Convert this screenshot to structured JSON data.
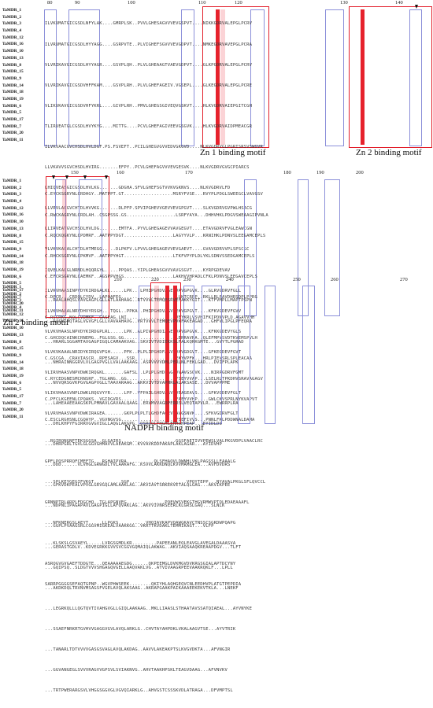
{
  "blocks": [
    {
      "ruler": [
        "80",
        "90",
        "100",
        "110",
        "120",
        "130",
        "140"
      ],
      "sequence_names": [
        "TaMDR_1",
        "TaMDR_2",
        "TaMDR_3",
        "TaMDR_4",
        "TaMDR_12",
        "TaMDR_16",
        "TaMDR_10",
        "TaMDR_13",
        "TaMDR_8",
        "TaMDR_15",
        "TaMDR_9",
        "TaMDR_14",
        "TaMDR_18",
        "TaMDR_19",
        "TaMDR_6",
        "TaMDR_5",
        "TaMDR_17",
        "TaMDR_7",
        "TaMDR_20",
        "TaMDR_11"
      ],
      "sequences": [
        "ILVKVMATGICGSDLNFYLAK....GMRPLSK..PVVLGHESAGVVVEVGSPVT....NIKKGDRVALEPGLPCRV",
        "ILVRVMATGICGSDLHYYAGG....GSRPVTE..PLVIGHEFSGVVVEVGDPVT....NMKEGDRVAVEPGLPCRA",
        "VLVRIKAVGICGSDLHYYAGR....GSVPLQH..PLVLGHEAAGTVAEVGDPVT....GLKPGDRVALEPGLPCRV",
        "VLVRIKAVGICGSDVHFFKAM....GSVPLRH..PLVLGHEFAGEIV.VGSEPL....GLKEGDRVALEPGLPCRE",
        "VLIKVKAVGICGSDVHFYKRL....GIVPLRH..PMVLGHEGSGIVEQVGSKVT....HLKVGDRVAIEPGITCGH",
        "TLIRVEATGLCGSDLHVYKYG....MITTG....PCVLGHEFAGIVEEVGSGVK....HLKVGDRVAIDPMEACGR",
        "ILVKVAACGVCHSDLHVLDGF.PS.FSVEFT..PCILGHEGVGVVEDVGKGVD....NLKVGDRVGLPGRISRSVSWGVR",
        "LLVKAVVSGVCHSDLHVIRG.......EFPY..PCVLGHEFAGVVVEVGESVK....NLKVGDRVGVGCPIARCS",
        "LHIQVEASGICGSDLHVLKG.......GDGHA.SFVLGHEFSGTVVKVGKNVS....NLKVGDRVLFD",
        "LLVRVLACGVCHTDLHVVKG.......DLPFP.SPVIPGHEVVGEVVEVGPGVT....SLKVGDRVGVPWLHSACG",
        "LLIRVEATGVCHSDLHVLDG.......EMTFA..PYVLGHEGAGEVVAVGEGVT....ETAVGDRVFVGLEAWCGN",
        "VLVKVKACALCHTDLHTMEGG.....DLPKFV.LPVVLGHEGAGEVVEVGAEVT....GVAVGDRVVPLSPSCGC",
        "IQVELKACGLNRMDLHQQRGYL.....PPQAS..YIPLGHEASGVVVAVGSGVT....KYRPGDEVAV",
        "ILVKVHAASINPVDYKIRDGALKL.....LPK...LPHIPGHDVAGEVVAVGPGVK....GLRVGDRVFGLL",
        "ILVKVHAAALNRVDHVYRSGH...TQGL..PPKA..PHIPGHDVAGVVEKVGPGVT....KFKVGDEVFGVV",
        "VLVKVHAASLNPVDYKIRDGPLRL.....LPK..ALPIVPGHDIAGEVVAVGPGVK....KFKKGDEVYGLS",
        "VLVKVKAAALNRIDYKIRQGVFGH.....PFK..PLPLIPGHDFAGVVVAVGDGVT....GFKEGDEVFGVT",
        "VLIRVHAASVNPVDWKIRQGKL.......GAFSL..LPLPLGHDFAGEVVAVGSGVK....NIRPGDRVFGMT",
        "VLIKVHAASVNPLDWKLRQGVYYR.....LPP..VFPAILGHDVAGVVVEAGEAVS....GFKVGDEVFGLT",
        "VLVRVHAASVNPVDWKIRAGEA.......GKPLPLPLTLGHDFAGEVVAVGSNVK....SFKVGDRVFGLT"
      ]
    },
    {
      "ruler": [
        "150",
        "160",
        "170",
        "180",
        "190",
        "200"
      ],
      "sequence_names": [
        "TaMDR_1",
        "TaMDR_2",
        "TaMDR_3",
        "TaMDR_4",
        "TaMDR_12",
        "TaMDR_16",
        "TaMDR_10",
        "TaMDR_13",
        "TaMDR_8",
        "TaMDR_15",
        "TaMDR_9",
        "TaMDR_14",
        "TaMDR_18",
        "TaMDR_19",
        "TaMDR_6",
        "TaMDR_5",
        "TaMDR_17",
        "TaMDR_7",
        "TaMDR_20",
        "TaMDR_11"
      ],
      "sequences": [
        "C.EYCKSGRYNLCRDHGY..MATPPT.GT..................MSRYFVSE...RVYPLPDGLSWEEGCLVAVGSV",
        "C.RWCKAGRYNLCRDLAH..CSGPSSG.GS..................LSRFYAYA...DHHVHKLPDGVSWEAAGIPVNLA",
        "C.RQCKQGKYNLCPDMRF..AATPPYDGT..................LAGYYVLP...KRNIHKLPDNVSLEEGAMCEPLS",
        "C.RHCKSGRYNLCPKMVF..AATPPYHGT..................LTKFVPYPLDLYKLSDNVSSEDGAMCEPLS",
        "C.EFCRSGRYNLCAEMKF..AGSPPVHGS..................LAKHVVHPADLCFKLPDNVSLEEGAVCEPLS",
        "C.DPCR...CRDQLCYDV..LAPQAFEG....................LLKTCRPP..RKLLRLPAVDHRSDPLPPRG",
        "C.RSCRKG.NQLCVDMKF..GASEAG.LNI..................VEYKRLVSVHIFKIPDNVPLD.AGAVVHH",
        "C.GHCDQCAINKCRNEMG..FGLGSG.GG...................LERRAVRA..QLEFMPVSVDTKVEMSPVLH",
        "C.GSCGA..CRAVIASCR..RPESAGV...SSR..............QEKYVPFW...HRLPIEVSRLSPLEACAA",
        "C.RYCEDGNESMCRNSRF..TGLANG..GG..................YSEYVVAP...LSELRLTPKDHVSRAVAGAGV",
        "C.PFCLKGEENLCPQAKS..VGIDGVRS....................YAEYVVHP....GWLCKVSPRLNYKVAPVT",
        "C.ESCLRGHSNLCGQAYP..VGVNGVSG....................YSEFIVVS...PNNLFKLPDDWNALDAMA",
        "..RGIRQNGNFTEKSGGSA..GLGAIRS....................GGSFAETIVVPEWSLVALPKGVDPLVAACLRC",
        "GPFLPQSPRRQFCMEFTG...RGHAIPVRA..........QLSFHAQVLDWNHLVKLPAGSSLLEAAALG",
        "...SPLKEYGEGIFVKGT..........SGP.....................VPQYTEPP...NYAVALPKGLSFLQVCCL",
        "GRNNPTRLARPLFDGCHQ..TGLAPGNVEG..............PQEVWSVEKGTHGVRMWVPTQLEDAEAAAFL",
        "...NFKNERGSLAEYT.....LLPGKS..........VHQIAVKAPVQAWGKAVCTNSSCSGKDWPQAPG",
        "...KLSKSLGSVAEYL.....LVRGSGMDLKR.........PAPEEANLEQLEAVGLAVEGALDAAASVA",
        "ASRQGVGVGAEFTDDGTE...QEAAAAAEGDG......QKPEEMGLDVKMGVDVKRGSGIALAPTDCYNY",
        "SARRPGGGGSEFAQTGPNP..WGVPHWSEEK........QKIYHLAQHGEQVCNLEEDHVPLATGTPEPDIA"
      ]
    },
    {
      "ruler": [
        "210",
        "220",
        "230",
        "240",
        "250",
        "260",
        "270"
      ],
      "sequence_names": [
        "TaMDR_1",
        "TaMDR_2",
        "TaMDR_3",
        "TaMDR_4",
        "TaMDR_12",
        "TaMDR_16",
        "TaMDR_10",
        "TaMDR_13",
        "TaMDR_8",
        "TaMDR_15",
        "TaMDR_9",
        "TaMDR_14",
        "TaMDR_18",
        "TaMDR_19",
        "TaMDR_6",
        "TaMDR_5",
        "TaMDR_17",
        "TaMDR_7",
        "TaMDR_20",
        "TaMDR_11"
      ],
      "sequences": [
        "...RAALAHQSLVAVGAGPLGLLATLAAHAAG..RTVVVLTEMQESRVEFAKKYGIT...KTFVMPLLMAPTPSPN",
        "...RASNIHQTAGLVGVGFLGLLVAVAAHAVG..VRTVVVLTEMQEVPVKFAKEAGAD...GHFVLIPGLPFEQRA",
        "...HRARLSGGAMTAVGAGPIGQLCAMAAKVAG..SKVIVTVDIEKKSLFALKQRKGMTE...GVYTLPGRAD",
        "...NHRAINNGGRVLVLGAGPVGLLVALAAKAAG..ASRVVVVDMLPERLNLFEKLGAD...DVIFPLAPK",
        "...NVVQRSGVKPGVGAGPVGLLTAAVARAAG..AKKVIVTDVAPHRLALAKSASE...DVVAPPPME",
        "...LAHEAAEEAAGSKPLPMNAVLGAVAALQAAG..ERVMVVAGDPERRSLVEQTAPVLR...EWRRPLRA",
        "...DHLKHPYFGIRRVGVGVIGLLAQGLAKGPG..QSRGQLFHGHLEHHGKPEAP...EYIDLDS",
        "...DHRPGRLTGVLGLGGVGHMAVVLAEAKGM..KVVAVKDDPAKAPLAKLAGAR...AYIDVHP",
        "...DDD......VLVHGLGRWGDLTVLAAKAFG..KSVVLAKKDNQLKVVMAMGLEA...AVFDVDRS",
        "...GFKVDKPEALVPVGLGRVGQLAMLAAKLAG..AKVIAVTSRKEKVETALQLGAG...AKVIKPEE",
        "...NDPNLIPAGAPAVLGAGPIGLLAFQVAKLAG..AKVVIVNRSEERLKLGRSLGAQ...SLNLK",
        "...GGPLPVAAGSRLCGGVMIGKEALVAAKKGG..VKRTTKVDAKLTEMMIKAGT...VLFP",
        "...GERASTGDLV..KDVEGRKKGVVSVCGGVGQMAIQLAKWAG..AKVIAQSAAQKREAAPDGV...TLFT",
        "...GQIPSQ..SLDGTVVVSHGAGQVGELLAAQVAKLVG..ATVIVAAGRPEEVAAKRQKLF...LPLL",
        "...AKDKDQLTRVNVMSAGSFVGELAVQLAKSAAG..AKRAPGAAKPAIKAAAEEKEKVTKLA...LNEKF",
        "...LEGRKQLLLQGTQVTIVAHGVGLLGIQLAAKAAG..MKLLIAASLSTHAATAVSSATQIAEAL...AYVNYKE",
        "...SSAEFNRKRTGVHVVGAGGVGVLAVQLARKLG..CHVTAYAHPDKLVKALAAGVTSE...AYVTRIK",
        "...TANARLTDTVVVVGASGSVAGLAVQLAKDAG..AAVVLAKEAKPTSLKVGVDKTA...AFVNGIR",
        "...GGVANGEGLSVVVRAGVVGPSVLSVIAKNVG..AHVTAAKHPSKLTEAGVDAAG...AFVNVKV",
        "...TRTPWERARGSVLVHGGSGGVGLVGVQIARKLG..AHVGSTCSSSKVDLATRAGA...DFVMPTSL"
      ]
    }
  ],
  "annotations": {
    "zn1": "Zn 1 binding motif",
    "zn2": "Zn 2 binding motif",
    "zn2_cont": "Zn 2 binding motif",
    "nadph": "NADPH binding motif"
  }
}
